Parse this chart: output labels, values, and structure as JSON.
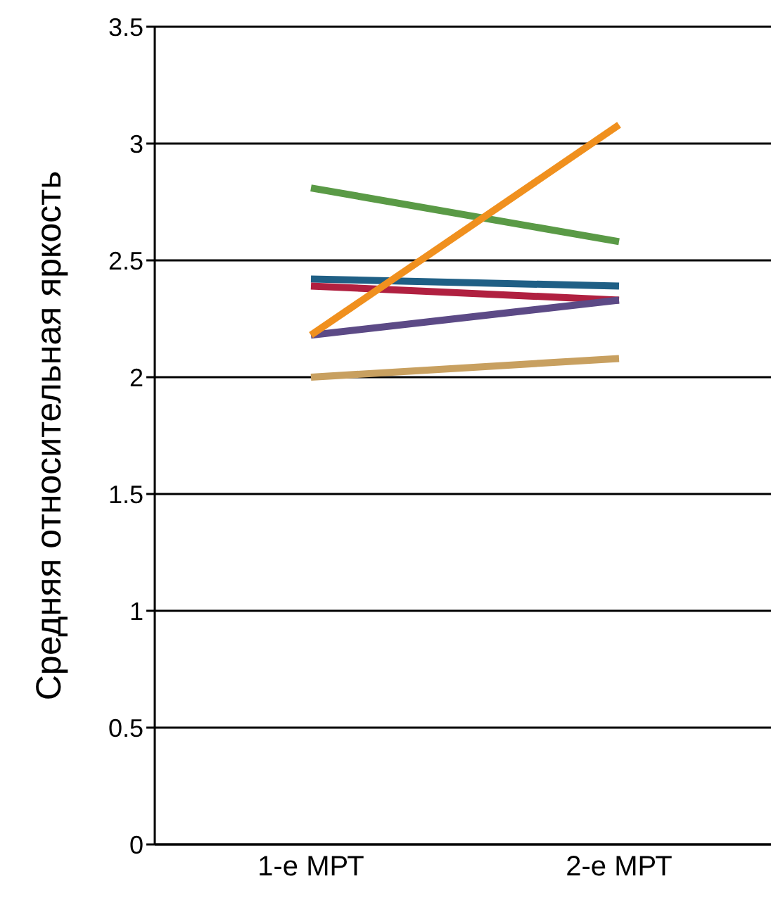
{
  "chart_data": {
    "type": "line",
    "ylabel": "Средняя относительная яркость",
    "categories": [
      "1-е МРТ",
      "2-е МРТ"
    ],
    "series": [
      {
        "color": "#1f5f85",
        "values": [
          2.42,
          2.39
        ]
      },
      {
        "color": "#b02040",
        "values": [
          2.39,
          2.33
        ]
      },
      {
        "color": "#5c4a86",
        "values": [
          2.18,
          2.33
        ]
      },
      {
        "color": "#c8a060",
        "values": [
          2.0,
          2.08
        ]
      },
      {
        "color": "#5a9a46",
        "values": [
          2.81,
          2.58
        ]
      },
      {
        "color": "#f0901e",
        "values": [
          2.18,
          3.08
        ]
      }
    ],
    "ylim": [
      0,
      3.5
    ],
    "yticks": [
      0,
      0.5,
      1,
      1.5,
      2,
      2.5,
      3,
      3.5
    ],
    "grid": "y",
    "marker": "none",
    "line_style": "solid"
  }
}
